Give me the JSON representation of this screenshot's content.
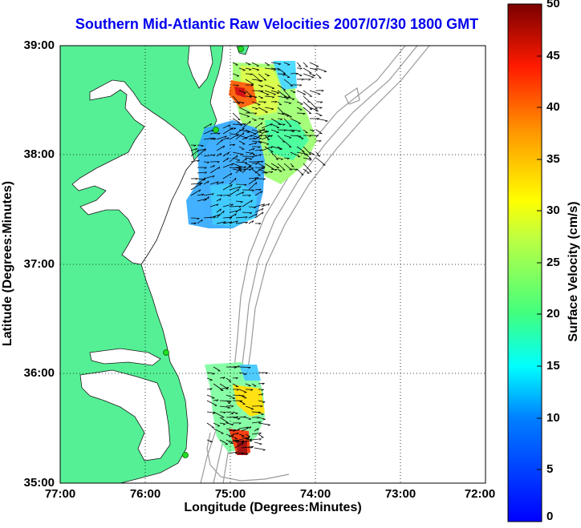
{
  "title": "Southern Mid-Atlantic Raw Velocities 2007/07/30 1800 GMT",
  "x_axis": {
    "label": "Longitude (Degrees:Minutes)",
    "ticks": [
      "77:00",
      "76:00",
      "75:00",
      "74:00",
      "73:00",
      "72:00"
    ]
  },
  "y_axis": {
    "label": "Latitude (Degrees:Minutes)",
    "ticks": [
      "39:00",
      "38:00",
      "37:00",
      "36:00",
      "35:00"
    ]
  },
  "colorbar": {
    "label": "Surface Velocity (cm/s)",
    "ticks": [
      "50",
      "45",
      "40",
      "35",
      "30",
      "25",
      "20",
      "15",
      "10",
      "5",
      "0"
    ],
    "min": 0,
    "max": 50,
    "colormap": "jet"
  },
  "map": {
    "lon_range": [
      -77,
      -72
    ],
    "lat_range": [
      35,
      39
    ],
    "grid": "dotted",
    "land_color": "#55f095",
    "bathymetry_color": "#9a9a9a",
    "station_color": "#22dd22"
  }
}
